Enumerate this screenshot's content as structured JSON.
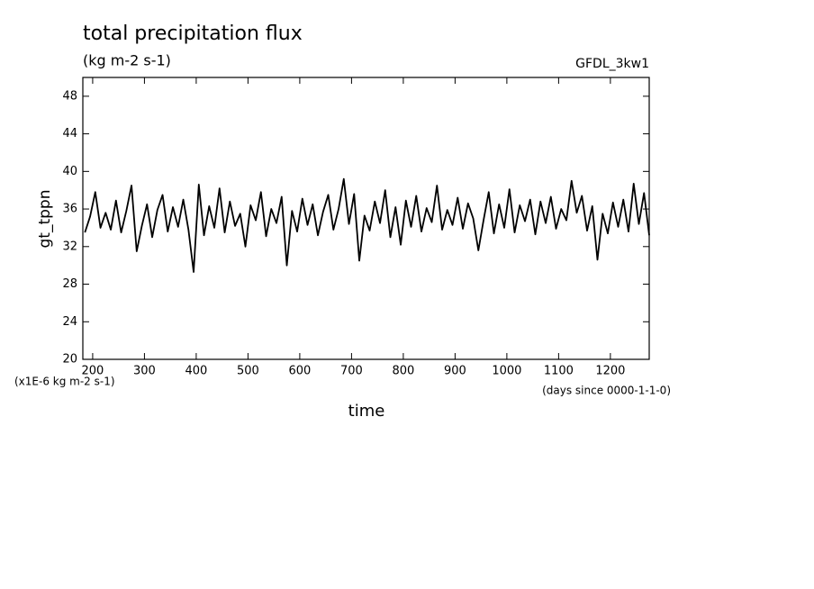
{
  "chart_data": {
    "type": "line",
    "title": "total precipitation flux",
    "subtitle": "(kg m-2 s-1)",
    "annotation": "GFDL_3kw1",
    "y_label": "gt_tppn",
    "x_label": "time",
    "y_units": "(x1E-6 kg m-2 s-1)",
    "x_units": "(days since 0000-1-1-0)",
    "xlim": [
      181,
      1275
    ],
    "ylim": [
      20,
      50
    ],
    "xticks": [
      200,
      300,
      400,
      500,
      600,
      700,
      800,
      900,
      1000,
      1100,
      1200
    ],
    "yticks": [
      20,
      24,
      28,
      32,
      36,
      40,
      44,
      48
    ],
    "x": [
      185,
      195,
      205,
      215,
      225,
      235,
      245,
      255,
      265,
      275,
      285,
      295,
      305,
      315,
      325,
      335,
      345,
      355,
      365,
      375,
      385,
      395,
      405,
      415,
      425,
      435,
      445,
      455,
      465,
      475,
      485,
      495,
      505,
      515,
      525,
      535,
      545,
      555,
      565,
      575,
      585,
      595,
      605,
      615,
      625,
      635,
      645,
      655,
      665,
      675,
      685,
      695,
      705,
      715,
      725,
      735,
      745,
      755,
      765,
      775,
      785,
      795,
      805,
      815,
      825,
      835,
      845,
      855,
      865,
      875,
      885,
      895,
      905,
      915,
      925,
      935,
      945,
      955,
      965,
      975,
      985,
      995,
      1005,
      1015,
      1025,
      1035,
      1045,
      1055,
      1065,
      1075,
      1085,
      1095,
      1105,
      1115,
      1125,
      1135,
      1145,
      1155,
      1165,
      1175,
      1185,
      1195,
      1205,
      1215,
      1225,
      1235,
      1245,
      1255,
      1265,
      1275
    ],
    "series": [
      {
        "color": "#000000",
        "values": [
          33.5,
          35.2,
          37.8,
          34.0,
          35.6,
          33.8,
          36.9,
          33.5,
          35.8,
          38.5,
          31.5,
          34.2,
          36.5,
          33.0,
          35.9,
          37.5,
          33.6,
          36.2,
          34.1,
          37.0,
          33.8,
          29.3,
          38.6,
          33.2,
          36.3,
          34.0,
          38.2,
          33.5,
          36.8,
          34.2,
          35.5,
          32.0,
          36.4,
          34.8,
          37.8,
          33.1,
          36.0,
          34.5,
          37.3,
          30.0,
          35.8,
          33.6,
          37.1,
          34.3,
          36.5,
          33.2,
          35.7,
          37.5,
          33.8,
          36.0,
          39.2,
          34.4,
          37.6,
          30.5,
          35.3,
          33.7,
          36.8,
          34.5,
          38.0,
          33.0,
          36.2,
          32.2,
          36.9,
          34.1,
          37.4,
          33.6,
          36.1,
          34.6,
          38.5,
          33.8,
          35.9,
          34.3,
          37.2,
          33.9,
          36.6,
          35.0,
          31.6,
          34.8,
          37.8,
          33.4,
          36.5,
          34.0,
          38.1,
          33.5,
          36.4,
          34.7,
          37.0,
          33.3,
          36.8,
          34.5,
          37.3,
          33.9,
          36.0,
          34.8,
          39.0,
          35.6,
          37.4,
          33.7,
          36.3,
          30.6,
          35.5,
          33.4,
          36.7,
          34.1,
          37.0,
          33.6,
          38.7,
          34.4,
          37.7,
          33.2
        ]
      }
    ]
  }
}
